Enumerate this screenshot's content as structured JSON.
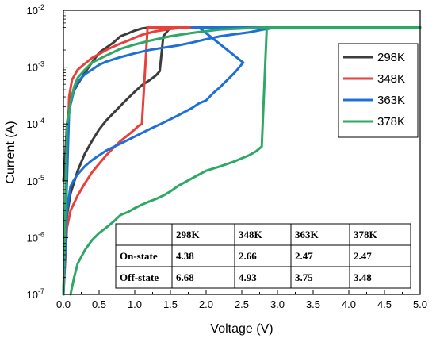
{
  "chart_data": {
    "type": "line",
    "xlabel": "Voltage (V)",
    "ylabel": "Current (A)",
    "xlim": [
      0,
      5
    ],
    "ylim": [
      1e-07,
      0.01
    ],
    "yscale": "log",
    "xticks": [
      "0.0",
      "0.5",
      "1.0",
      "1.5",
      "2.0",
      "2.5",
      "3.0",
      "3.5",
      "4.0",
      "4.5",
      "5.0"
    ],
    "yticks": [
      {
        "base": "10",
        "exp": "-7"
      },
      {
        "base": "10",
        "exp": "-6"
      },
      {
        "base": "10",
        "exp": "-5"
      },
      {
        "base": "10",
        "exp": "-4"
      },
      {
        "base": "10",
        "exp": "-3"
      },
      {
        "base": "10",
        "exp": "-2"
      }
    ],
    "legend_position": "top-right",
    "series": [
      {
        "name": "298K",
        "color": "#3c3c3c",
        "x": [
          0.0,
          0.05,
          0.1,
          0.2,
          0.3,
          0.4,
          0.5,
          0.6,
          0.75,
          0.9,
          1.0,
          1.1,
          1.2,
          1.3,
          1.35,
          1.4,
          1.5,
          2.0,
          3.0,
          4.0,
          5.0,
          4.0,
          3.0,
          2.0,
          1.5,
          1.2,
          1.1,
          1.0,
          0.9,
          0.8,
          0.7,
          0.6,
          0.5,
          0.4,
          0.3,
          0.2,
          0.1,
          0.05,
          0.02,
          0.0
        ],
        "y": [
          1e-07,
          2.5e-06,
          6e-06,
          1.5e-05,
          3e-05,
          5e-05,
          8e-05,
          0.000115,
          0.00018,
          0.00028,
          0.00037,
          0.00048,
          0.00058,
          0.00072,
          0.00085,
          0.0035,
          0.005,
          0.005,
          0.005,
          0.005,
          0.005,
          0.005,
          0.005,
          0.005,
          0.005,
          0.005,
          0.0048,
          0.0044,
          0.0039,
          0.0035,
          0.0027,
          0.0022,
          0.0018,
          0.0012,
          0.0008,
          0.0005,
          0.0003,
          0.0001,
          2e-05,
          1e-05
        ]
      },
      {
        "name": "348K",
        "color": "#e8403a",
        "x": [
          0.0,
          0.05,
          0.1,
          0.2,
          0.3,
          0.4,
          0.5,
          0.6,
          0.7,
          0.8,
          0.9,
          1.0,
          1.05,
          1.1,
          1.18,
          1.25,
          1.4,
          1.8,
          2.0,
          3.0,
          4.0,
          5.0,
          4.0,
          3.0,
          2.0,
          1.7,
          1.5,
          1.3,
          1.2,
          1.1,
          1.0,
          0.9,
          0.8,
          0.7,
          0.6,
          0.5,
          0.4,
          0.3,
          0.2,
          0.12,
          0.08,
          0.0
        ],
        "y": [
          1e-07,
          1.5e-06,
          3e-06,
          5.5e-06,
          9e-06,
          1.4e-05,
          2e-05,
          2.8e-05,
          3.8e-05,
          5e-05,
          6.3e-05,
          8e-05,
          9.2e-05,
          0.0001,
          0.005,
          0.005,
          0.005,
          0.005,
          0.005,
          0.005,
          0.005,
          0.005,
          0.005,
          0.005,
          0.005,
          0.005,
          0.0047,
          0.0043,
          0.004,
          0.0037,
          0.0033,
          0.0029,
          0.0026,
          0.0023,
          0.002,
          0.0017,
          0.00145,
          0.00115,
          0.0009,
          0.0006,
          0.0003,
          1e-07
        ]
      },
      {
        "name": "363K",
        "color": "#1f6fd6",
        "x": [
          0.0,
          0.05,
          0.1,
          0.15,
          0.2,
          0.3,
          0.4,
          0.5,
          0.6,
          0.8,
          1.0,
          1.2,
          1.4,
          1.6,
          1.8,
          1.9,
          2.0,
          2.1,
          2.2,
          2.3,
          2.4,
          2.52,
          1.9,
          1.8,
          2.0,
          2.5,
          3.0,
          4.0,
          5.0,
          4.0,
          3.0,
          2.8,
          2.6,
          2.4,
          2.2,
          2.0,
          1.8,
          1.6,
          1.4,
          1.2,
          1.0,
          0.8,
          0.6,
          0.5,
          0.4,
          0.3,
          0.2,
          0.15,
          0.1,
          0.08,
          0.0
        ],
        "y": [
          1e-07,
          3e-06,
          8e-06,
          1.05e-05,
          1.3e-05,
          1.8e-05,
          2.3e-05,
          2.8e-05,
          3.4e-05,
          4.5e-05,
          6e-05,
          8e-05,
          0.000105,
          0.00014,
          0.00019,
          0.00023,
          0.00026,
          0.00035,
          0.00045,
          0.0006,
          0.0008,
          0.0012,
          0.005,
          0.005,
          0.005,
          0.005,
          0.005,
          0.005,
          0.005,
          0.005,
          0.005,
          0.0046,
          0.0041,
          0.0038,
          0.0035,
          0.0031,
          0.0027,
          0.0024,
          0.0022,
          0.002,
          0.00175,
          0.0015,
          0.00125,
          0.0011,
          0.0009,
          0.00075,
          0.00055,
          0.0004,
          0.00022,
          0.00017,
          1e-07
        ]
      },
      {
        "name": "378K",
        "color": "#2ea865",
        "x": [
          0.1,
          0.15,
          0.2,
          0.3,
          0.4,
          0.5,
          0.6,
          0.7,
          0.8,
          0.9,
          1.0,
          1.1,
          1.2,
          1.3,
          1.4,
          1.5,
          1.6,
          1.8,
          2.0,
          2.2,
          2.4,
          2.6,
          2.7,
          2.78,
          2.85,
          3.0,
          4.0,
          5.0,
          4.0,
          3.0,
          2.8,
          2.5,
          2.2,
          2.0,
          1.8,
          1.5,
          1.2,
          1.0,
          0.8,
          0.6,
          0.4,
          0.3,
          0.2,
          0.15,
          0.1,
          0.08,
          0.05,
          0.0
        ],
        "y": [
          1e-07,
          2e-07,
          3.5e-07,
          6e-07,
          9e-07,
          1.2e-06,
          1.5e-06,
          1.9e-06,
          2.5e-06,
          2.8e-06,
          3.3e-06,
          3.8e-06,
          4.3e-06,
          4.8e-06,
          5.5e-06,
          6.5e-06,
          8e-06,
          1.1e-05,
          1.5e-05,
          1.8e-05,
          2.2e-05,
          2.8e-05,
          3.3e-05,
          4e-05,
          0.005,
          0.005,
          0.005,
          0.005,
          0.005,
          0.005,
          0.005,
          0.0048,
          0.0046,
          0.0043,
          0.004,
          0.0035,
          0.0029,
          0.0025,
          0.0021,
          0.0016,
          0.0012,
          0.0009,
          0.00065,
          0.00045,
          0.00025,
          0.00015,
          0.0001,
          1e-07
        ]
      }
    ]
  },
  "table": {
    "headers": [
      "",
      "298K",
      "348K",
      "363K",
      "378K"
    ],
    "rows": [
      [
        "On-state",
        "4.38",
        "2.66",
        "2.47",
        "2.47"
      ],
      [
        "Off-state",
        "6.68",
        "4.93",
        "3.75",
        "3.48"
      ]
    ]
  }
}
